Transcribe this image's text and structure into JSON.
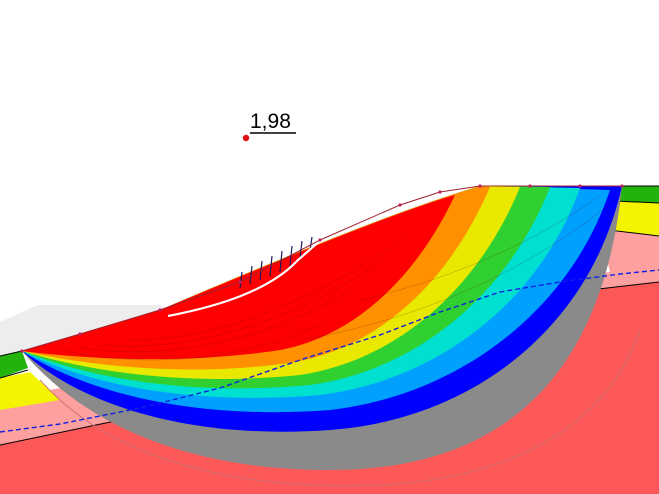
{
  "analysis": {
    "minimum_fos_label": "1,98",
    "colors": {
      "layer_topsoil": "#22b40c",
      "layer_yellow": "#f4f400",
      "layer_pink": "#ffa0a0",
      "layer_bedrock": "#fd5858",
      "water_table": "#1020e0",
      "slip_gray": "#8a8a8a",
      "critical_surface": "#ffffff",
      "center_marker": "#e01010"
    },
    "color_scale_order": [
      "red",
      "orange",
      "yellow",
      "green",
      "cyan",
      "blue",
      "gray"
    ],
    "icons": {
      "critical_center": "red-dot-icon"
    }
  }
}
